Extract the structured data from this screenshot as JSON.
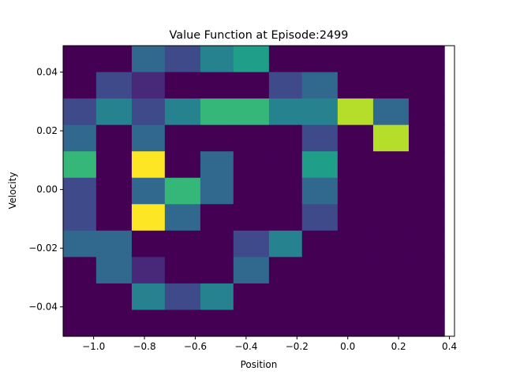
{
  "chart_data": {
    "type": "heatmap",
    "title": "Value Function at Episode:2499",
    "xlabel": "Position",
    "ylabel": "Velocity",
    "xlim": [
      -1.12,
      0.42
    ],
    "ylim": [
      -0.05,
      0.049
    ],
    "x_edges": [
      -1.12,
      -0.99,
      -0.85,
      -0.72,
      -0.58,
      -0.45,
      -0.31,
      -0.18,
      -0.04,
      0.1,
      0.24,
      0.38
    ],
    "y_edges": [
      -0.05,
      -0.041,
      -0.032,
      -0.023,
      -0.014,
      -0.005,
      0.004,
      0.013,
      0.022,
      0.031,
      0.04,
      0.049
    ],
    "xticks": [
      -1.0,
      -0.8,
      -0.6,
      -0.4,
      -0.2,
      0.0,
      0.2,
      0.4
    ],
    "xtick_labels": [
      "−1.0",
      "−0.8",
      "−0.6",
      "−0.4",
      "−0.2",
      "0.0",
      "0.2",
      "0.4"
    ],
    "yticks": [
      -0.04,
      -0.02,
      0.0,
      0.02,
      0.04
    ],
    "ytick_labels": [
      "−0.04",
      "−0.02",
      "0.00",
      "0.02",
      "0.04"
    ],
    "colormap": "viridis",
    "value_range": [
      0,
      1
    ],
    "values_top_to_bottom": [
      [
        0.0,
        0.0,
        0.3,
        0.2,
        0.45,
        0.6,
        0.0,
        0.0,
        0.0,
        0.0,
        0.0
      ],
      [
        0.0,
        0.2,
        0.1,
        0.0,
        0.0,
        0.0,
        0.2,
        0.3,
        0.0,
        0.0,
        0.0
      ],
      [
        0.2,
        0.45,
        0.2,
        0.45,
        0.68,
        0.68,
        0.45,
        0.45,
        0.9,
        0.3,
        0.0
      ],
      [
        0.3,
        0.0,
        0.3,
        0.0,
        0.0,
        0.0,
        0.0,
        0.2,
        0.0,
        0.9,
        0.0
      ],
      [
        0.68,
        0.0,
        1.0,
        0.0,
        0.3,
        0.0,
        0.0,
        0.6,
        0.0,
        0.0,
        0.0
      ],
      [
        0.2,
        0.0,
        0.3,
        0.68,
        0.3,
        0.0,
        0.0,
        0.3,
        0.0,
        0.0,
        0.0
      ],
      [
        0.2,
        0.0,
        1.0,
        0.3,
        0.0,
        0.0,
        0.0,
        0.2,
        0.0,
        0.0,
        0.0
      ],
      [
        0.3,
        0.3,
        0.0,
        0.0,
        0.0,
        0.2,
        0.45,
        0.0,
        0.0,
        0.0,
        0.0
      ],
      [
        0.0,
        0.3,
        0.1,
        0.0,
        0.0,
        0.3,
        0.0,
        0.0,
        0.0,
        0.0,
        0.0
      ],
      [
        0.0,
        0.0,
        0.45,
        0.2,
        0.45,
        0.0,
        0.0,
        0.0,
        0.0,
        0.0,
        0.0
      ],
      [
        0.0,
        0.0,
        0.0,
        0.0,
        0.0,
        0.0,
        0.0,
        0.0,
        0.0,
        0.0,
        0.0
      ]
    ]
  }
}
